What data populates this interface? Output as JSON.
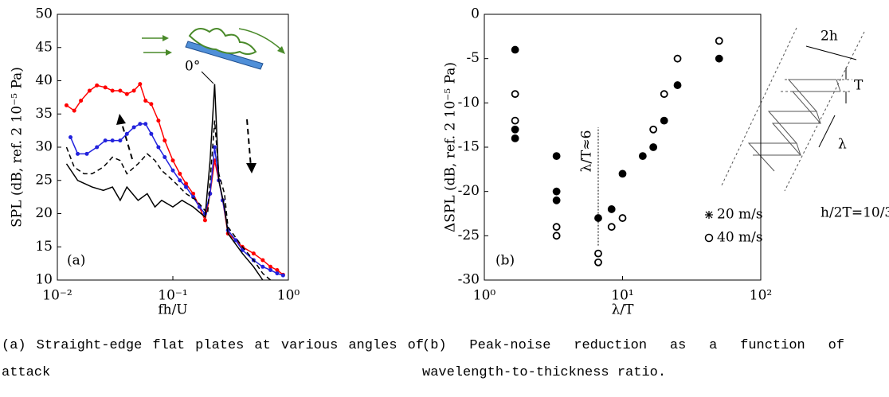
{
  "chart_data": [
    {
      "type": "line",
      "xlabel": "fh/U",
      "ylabel": "SPL (dB, ref. 2 10⁻⁵ Pa)",
      "xscale": "log",
      "xlim": [
        0.01,
        1
      ],
      "xticks": [
        {
          "value": 0.01,
          "label": "10⁻²"
        },
        {
          "value": 0.1,
          "label": "10⁻¹"
        },
        {
          "value": 1,
          "label": "10⁰"
        }
      ],
      "ylim": [
        10,
        50
      ],
      "yticks": [
        10,
        15,
        20,
        25,
        30,
        35,
        40,
        45,
        50
      ],
      "annotations": [
        "0°",
        "(a)"
      ],
      "series": [
        {
          "color": "#ff0000",
          "marker": "dot",
          "linestyle": "solid",
          "x": [
            0.012,
            0.014,
            0.016,
            0.019,
            0.022,
            0.026,
            0.03,
            0.035,
            0.04,
            0.046,
            0.052,
            0.058,
            0.065,
            0.075,
            0.085,
            0.1,
            0.115,
            0.13,
            0.15,
            0.17,
            0.19,
            0.21,
            0.23,
            0.25,
            0.27,
            0.3,
            0.35,
            0.4,
            0.5,
            0.6,
            0.7,
            0.8,
            0.9
          ],
          "values": [
            36.3,
            35.5,
            37,
            38.5,
            39.3,
            39,
            38.5,
            38.5,
            38,
            38.5,
            39.5,
            37,
            36.5,
            34,
            31,
            28,
            26,
            24.5,
            23,
            21,
            19,
            23,
            28,
            25,
            22,
            17,
            16,
            15,
            14,
            13,
            12,
            11.5,
            10.8
          ]
        },
        {
          "color": "#2222dd",
          "marker": "dot",
          "linestyle": "solid",
          "x": [
            0.013,
            0.015,
            0.018,
            0.022,
            0.026,
            0.03,
            0.035,
            0.04,
            0.046,
            0.052,
            0.058,
            0.065,
            0.075,
            0.085,
            0.1,
            0.115,
            0.13,
            0.15,
            0.17,
            0.19,
            0.21,
            0.23,
            0.25,
            0.27,
            0.3,
            0.35,
            0.4,
            0.5,
            0.6,
            0.7,
            0.8,
            0.9
          ],
          "values": [
            31.5,
            29,
            29,
            30,
            31,
            31,
            31,
            32,
            33,
            33.5,
            33.5,
            32,
            30,
            28.5,
            26.5,
            25,
            24,
            22.5,
            21,
            20,
            23,
            30,
            25,
            22,
            17.5,
            16,
            14.5,
            13,
            12,
            11.5,
            11,
            10.7
          ]
        },
        {
          "color": "#000000",
          "marker": "none",
          "linestyle": "dashed",
          "x": [
            0.012,
            0.014,
            0.017,
            0.02,
            0.025,
            0.03,
            0.035,
            0.04,
            0.05,
            0.06,
            0.07,
            0.08,
            0.1,
            0.13,
            0.16,
            0.2,
            0.23,
            0.25,
            0.28,
            0.3,
            0.4,
            0.5,
            0.6,
            0.7
          ],
          "values": [
            30,
            27,
            26,
            26,
            27,
            28.5,
            28,
            26,
            27.5,
            29,
            28,
            26.5,
            25,
            23,
            22,
            20,
            34,
            26,
            23,
            18,
            15,
            13,
            11,
            10
          ]
        },
        {
          "color": "#000000",
          "marker": "none",
          "linestyle": "solid",
          "x": [
            0.012,
            0.015,
            0.02,
            0.025,
            0.03,
            0.035,
            0.04,
            0.05,
            0.06,
            0.07,
            0.08,
            0.1,
            0.12,
            0.15,
            0.19,
            0.21,
            0.23,
            0.25,
            0.28,
            0.3,
            0.4,
            0.5,
            0.6
          ],
          "values": [
            27.5,
            25,
            24,
            23.5,
            24,
            22,
            24,
            22,
            23,
            21,
            22,
            21,
            22,
            21,
            19.5,
            28,
            39.5,
            25,
            21,
            17,
            14,
            12,
            10
          ]
        }
      ]
    },
    {
      "type": "scatter",
      "xlabel": "λ/T",
      "ylabel": "ΔSPL (dB, ref. 2 10⁻⁵ Pa)",
      "xscale": "log",
      "xlim": [
        1,
        100
      ],
      "xticks": [
        {
          "value": 1,
          "label": "10⁰"
        },
        {
          "value": 10,
          "label": "10¹"
        },
        {
          "value": 100,
          "label": "10²"
        }
      ],
      "ylim": [
        -30,
        0
      ],
      "yticks": [
        -30,
        -25,
        -20,
        -15,
        -10,
        -5,
        0
      ],
      "annotations": [
        "λ/T≈6",
        "(b)",
        "2h",
        "T",
        "λ",
        "h/2T=10/3"
      ],
      "series": [
        {
          "name": "20 m/s",
          "color": "#000000",
          "marker": "filled",
          "x": [
            1.67,
            1.67,
            1.67,
            3.33,
            3.33,
            3.33,
            6.67,
            8.33,
            10,
            14,
            16.7,
            20,
            25,
            50
          ],
          "values": [
            -4,
            -13,
            -14,
            -16,
            -20,
            -21,
            -23,
            -22,
            -18,
            -16,
            -15,
            -12,
            -8,
            -5
          ]
        },
        {
          "name": "40 m/s",
          "color": "#000000",
          "marker": "open",
          "x": [
            1.67,
            1.67,
            3.33,
            3.33,
            6.67,
            6.67,
            8.33,
            10,
            16.7,
            20,
            25,
            50
          ],
          "values": [
            -9,
            -12,
            -24,
            -25,
            -27,
            -28,
            -24,
            -23,
            -13,
            -9,
            -5,
            -3
          ]
        }
      ]
    }
  ],
  "captions": [
    "(a) Straight-edge flat plates at various angles of attack",
    "(b) Peak-noise reduction as a function of wavelength-to-thickness ratio."
  ]
}
